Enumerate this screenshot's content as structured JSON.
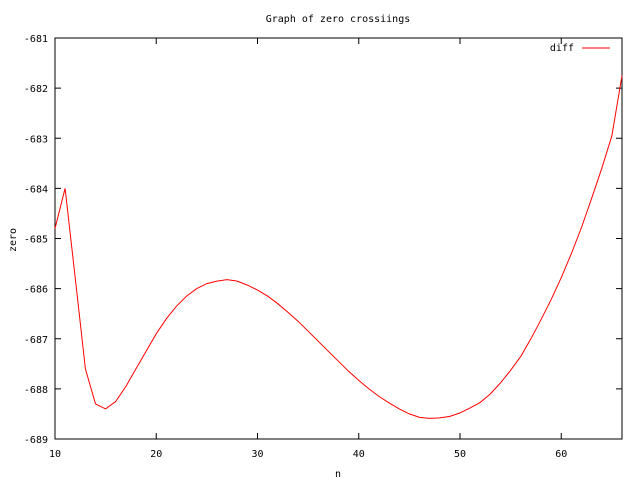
{
  "chart_data": {
    "type": "line",
    "title": "Graph of zero crossiings",
    "xlabel": "n",
    "ylabel": "zero",
    "xlim": [
      10,
      66
    ],
    "ylim": [
      -689,
      -681
    ],
    "xticks": [
      10,
      20,
      30,
      40,
      50,
      60
    ],
    "yticks": [
      -681,
      -682,
      -683,
      -684,
      -685,
      -686,
      -687,
      -688,
      -689
    ],
    "xtick_labels": [
      "10",
      "20",
      "30",
      "40",
      "50",
      "60"
    ],
    "ytick_labels": [
      "-681",
      "-682",
      "-683",
      "-684",
      "-685",
      "-686",
      "-687",
      "-688",
      "-689"
    ],
    "grid": false,
    "legend_position": "top-right",
    "series": [
      {
        "name": "diff",
        "color": "#ff0000",
        "x": [
          10,
          11,
          12,
          13,
          14,
          15,
          16,
          17,
          18,
          19,
          20,
          21,
          22,
          23,
          24,
          25,
          26,
          27,
          28,
          29,
          30,
          31,
          32,
          33,
          34,
          35,
          36,
          37,
          38,
          39,
          40,
          41,
          42,
          43,
          44,
          45,
          46,
          47,
          48,
          49,
          50,
          51,
          52,
          53,
          54,
          55,
          56,
          57,
          58,
          59,
          60,
          61,
          62,
          63,
          64,
          65,
          66
        ],
        "y": [
          -684.8,
          -684.0,
          -685.8,
          -687.6,
          -688.3,
          -688.4,
          -688.25,
          -687.95,
          -687.6,
          -687.25,
          -686.9,
          -686.6,
          -686.35,
          -686.15,
          -686.0,
          -685.9,
          -685.85,
          -685.82,
          -685.85,
          -685.93,
          -686.03,
          -686.15,
          -686.3,
          -686.47,
          -686.65,
          -686.85,
          -687.05,
          -687.25,
          -687.45,
          -687.65,
          -687.83,
          -688.0,
          -688.15,
          -688.28,
          -688.4,
          -688.5,
          -688.57,
          -688.59,
          -688.58,
          -688.55,
          -688.48,
          -688.38,
          -688.27,
          -688.1,
          -687.88,
          -687.63,
          -687.35,
          -687.0,
          -686.62,
          -686.22,
          -685.78,
          -685.3,
          -684.78,
          -684.2,
          -683.6,
          -682.95,
          -681.75
        ]
      }
    ]
  }
}
